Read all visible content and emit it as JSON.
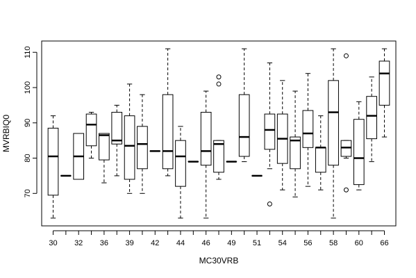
{
  "chart_data": {
    "type": "boxplot",
    "title": "",
    "xlabel": "MC30VRB",
    "ylabel": "MVRBIQ0",
    "ylim": [
      60.8,
      113.2
    ],
    "yticks": [
      70,
      80,
      90,
      100,
      110
    ],
    "grid": false,
    "legend": "none",
    "categories": [
      "30",
      "31",
      "32",
      "33",
      "36",
      "37",
      "39",
      "40",
      "42",
      "43",
      "44",
      "45",
      "46",
      "47",
      "49",
      "50",
      "51",
      "53",
      "54",
      "55",
      "56",
      "57",
      "58",
      "59",
      "60",
      "61",
      "66"
    ],
    "boxes": [
      {
        "category": "30",
        "whisker_low": 63,
        "q1": 69.5,
        "median": 80.5,
        "q3": 88.5,
        "whisker_high": 92,
        "outliers": []
      },
      {
        "category": "31",
        "whisker_low": 75,
        "q1": 75,
        "median": 75,
        "q3": 75,
        "whisker_high": 75,
        "outliers": []
      },
      {
        "category": "32",
        "whisker_low": 74,
        "q1": 74,
        "median": 80.5,
        "q3": 87,
        "whisker_high": 87,
        "outliers": []
      },
      {
        "category": "33",
        "whisker_low": 80,
        "q1": 83.5,
        "median": 89.5,
        "q3": 92.5,
        "whisker_high": 93,
        "outliers": []
      },
      {
        "category": "36",
        "whisker_low": 73,
        "q1": 79.5,
        "median": 86.5,
        "q3": 87,
        "whisker_high": 87,
        "outliers": []
      },
      {
        "category": "37",
        "whisker_low": 75,
        "q1": 84,
        "median": 85,
        "q3": 93,
        "whisker_high": 95,
        "outliers": []
      },
      {
        "category": "39",
        "whisker_low": 70,
        "q1": 74,
        "median": 83.5,
        "q3": 92,
        "whisker_high": 101,
        "outliers": []
      },
      {
        "category": "40",
        "whisker_low": 70,
        "q1": 77,
        "median": 84,
        "q3": 89,
        "whisker_high": 98,
        "outliers": []
      },
      {
        "category": "42",
        "whisker_low": 82,
        "q1": 82,
        "median": 82,
        "q3": 82,
        "whisker_high": 82,
        "outliers": []
      },
      {
        "category": "43",
        "whisker_low": 75,
        "q1": 77,
        "median": 82,
        "q3": 98,
        "whisker_high": 111,
        "outliers": []
      },
      {
        "category": "44",
        "whisker_low": 63,
        "q1": 72,
        "median": 80.5,
        "q3": 85,
        "whisker_high": 89,
        "outliers": []
      },
      {
        "category": "45",
        "whisker_low": 79,
        "q1": 79,
        "median": 79,
        "q3": 79,
        "whisker_high": 79,
        "outliers": []
      },
      {
        "category": "46",
        "whisker_low": 63,
        "q1": 78,
        "median": 82,
        "q3": 93,
        "whisker_high": 99,
        "outliers": []
      },
      {
        "category": "47",
        "whisker_low": 74,
        "q1": 76,
        "median": 84,
        "q3": 85,
        "whisker_high": 85,
        "outliers": [
          101,
          103
        ]
      },
      {
        "category": "49",
        "whisker_low": 79,
        "q1": 79,
        "median": 79,
        "q3": 79,
        "whisker_high": 79,
        "outliers": []
      },
      {
        "category": "50",
        "whisker_low": 79,
        "q1": 80.5,
        "median": 86,
        "q3": 98,
        "whisker_high": 111,
        "outliers": []
      },
      {
        "category": "51",
        "whisker_low": 75,
        "q1": 75,
        "median": 75,
        "q3": 75,
        "whisker_high": 75,
        "outliers": []
      },
      {
        "category": "53",
        "whisker_low": 77,
        "q1": 82.5,
        "median": 88,
        "q3": 92.5,
        "whisker_high": 107,
        "outliers": [
          67
        ]
      },
      {
        "category": "54",
        "whisker_low": 71,
        "q1": 78.5,
        "median": 85.5,
        "q3": 92.5,
        "whisker_high": 102,
        "outliers": []
      },
      {
        "category": "55",
        "whisker_low": 69,
        "q1": 77,
        "median": 85,
        "q3": 86,
        "whisker_high": 99,
        "outliers": []
      },
      {
        "category": "56",
        "whisker_low": 72,
        "q1": 83,
        "median": 87,
        "q3": 93.5,
        "whisker_high": 104,
        "outliers": []
      },
      {
        "category": "57",
        "whisker_low": 71,
        "q1": 76,
        "median": 83,
        "q3": 83,
        "whisker_high": 92,
        "outliers": []
      },
      {
        "category": "58",
        "whisker_low": 63,
        "q1": 78,
        "median": 93,
        "q3": 102,
        "whisker_high": 111,
        "outliers": []
      },
      {
        "category": "59",
        "whisker_low": 80,
        "q1": 80.5,
        "median": 83,
        "q3": 85,
        "whisker_high": 85,
        "outliers": [
          71,
          109
        ]
      },
      {
        "category": "60",
        "whisker_low": 71,
        "q1": 72.5,
        "median": 80,
        "q3": 91,
        "whisker_high": 96,
        "outliers": []
      },
      {
        "category": "61",
        "whisker_low": 79,
        "q1": 85.5,
        "median": 92,
        "q3": 97.5,
        "whisker_high": 103,
        "outliers": []
      },
      {
        "category": "66",
        "whisker_low": 86,
        "q1": 95,
        "median": 104,
        "q3": 107.5,
        "whisker_high": 111,
        "outliers": []
      }
    ],
    "xtick_labels_shown": [
      "30",
      "32",
      "36",
      "39",
      "42",
      "44",
      "46",
      "49",
      "51",
      "54",
      "56",
      "58",
      "60",
      "66"
    ],
    "colors": {
      "box_fill": "#ffffff",
      "stroke": "#000000"
    }
  }
}
